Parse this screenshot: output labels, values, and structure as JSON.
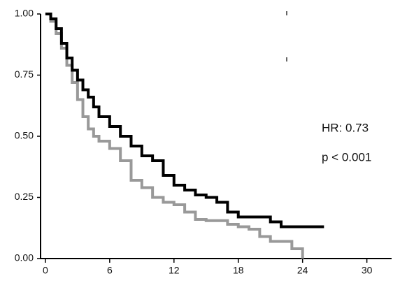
{
  "chart_data": {
    "type": "step",
    "x": [
      0,
      0.5,
      1,
      1.5,
      2,
      2.5,
      3,
      3.5,
      4,
      4.5,
      5,
      6,
      7,
      8,
      9,
      10,
      11,
      12,
      13,
      14,
      15,
      16,
      17,
      18,
      19,
      20,
      21,
      22,
      23,
      24,
      25,
      26
    ],
    "series": [
      {
        "color": "#000000",
        "values": [
          1.0,
          0.98,
          0.94,
          0.88,
          0.82,
          0.77,
          0.73,
          0.69,
          0.66,
          0.62,
          0.58,
          0.54,
          0.5,
          0.46,
          0.42,
          0.4,
          0.34,
          0.3,
          0.28,
          0.26,
          0.25,
          0.23,
          0.19,
          0.17,
          0.17,
          0.17,
          0.15,
          0.13,
          0.13,
          0.13,
          0.13,
          0.13
        ]
      },
      {
        "color": "#999999",
        "values": [
          1.0,
          0.97,
          0.92,
          0.86,
          0.79,
          0.72,
          0.65,
          0.58,
          0.53,
          0.5,
          0.48,
          0.45,
          0.4,
          0.32,
          0.29,
          0.25,
          0.23,
          0.22,
          0.19,
          0.16,
          0.155,
          0.155,
          0.14,
          0.13,
          0.12,
          0.09,
          0.07,
          0.07,
          0.04,
          0.0,
          null,
          null
        ]
      }
    ],
    "annotations": [
      "HR: 0.73",
      "p < 0.001"
    ],
    "xlim": [
      -0.45,
      32.7
    ],
    "xticks": [
      0,
      6,
      12,
      18,
      24,
      30
    ],
    "ylim": [
      0,
      1
    ],
    "yticks": [
      {
        "value": 0,
        "label": "0.00"
      },
      {
        "value": 0.25,
        "label": "0.25"
      },
      {
        "value": 0.5,
        "label": "0.50"
      },
      {
        "value": 0.75,
        "label": "0.75"
      },
      {
        "value": 1,
        "label": "1.00"
      }
    ]
  }
}
